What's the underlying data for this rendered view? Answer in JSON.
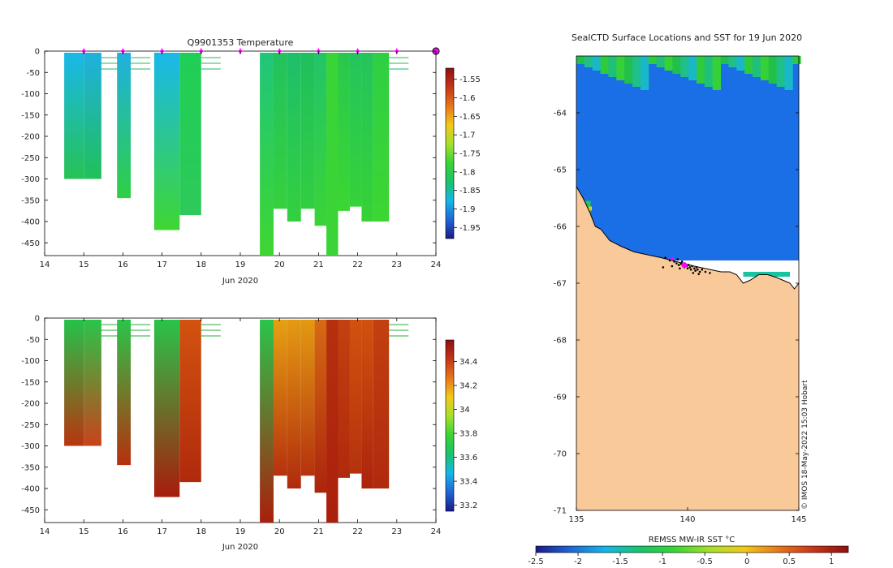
{
  "chart_data": [
    {
      "type": "heatmap",
      "title": "Q9901353  Temperature",
      "xlabel": "Jun 2020",
      "xlim": [
        14,
        24
      ],
      "ylim": [
        -480,
        0
      ],
      "x_ticks": [
        "14",
        "15",
        "16",
        "17",
        "18",
        "19",
        "20",
        "21",
        "22",
        "23",
        "24"
      ],
      "y_ticks": [
        "0",
        "-50",
        "-100",
        "-150",
        "-200",
        "-250",
        "-300",
        "-350",
        "-400",
        "-450"
      ],
      "colorbar": {
        "range": [
          -1.98,
          -1.52
        ],
        "ticks": [
          "-1.55",
          "-1.6",
          "-1.65",
          "-1.7",
          "-1.75",
          "-1.8",
          "-1.85",
          "-1.9",
          "-1.95"
        ],
        "colors": [
          "#1a1a8a",
          "#1f66d6",
          "#16b6e6",
          "#18c46a",
          "#3ad435",
          "#a6e02a",
          "#f2c91a",
          "#e8761b",
          "#c7341a",
          "#8e1010"
        ]
      },
      "surface_markers_x": [
        15,
        16,
        17,
        18,
        19,
        20,
        21,
        22,
        23
      ],
      "current_marker_x": 24,
      "profiles": [
        {
          "x0": 14.5,
          "x1": 15.0,
          "max_depth": 300,
          "top": "#19b8ea",
          "bottom": "#27c253"
        },
        {
          "x0": 15.0,
          "x1": 15.45,
          "max_depth": 300,
          "top": "#1fb0e0",
          "bottom": "#21c05a"
        },
        {
          "x0": 15.85,
          "x1": 16.2,
          "max_depth": 345,
          "top": "#1fb0e0",
          "bottom": "#2fcf44"
        },
        {
          "x0": 16.8,
          "x1": 17.45,
          "max_depth": 420,
          "top": "#19b8ea",
          "bottom": "#3fd632"
        },
        {
          "x0": 17.45,
          "x1": 18.0,
          "max_depth": 385,
          "top": "#1fcf55",
          "bottom": "#2ec95a"
        },
        {
          "x0": 19.5,
          "x1": 19.85,
          "max_depth": 480,
          "top": "#1fc67a",
          "bottom": "#3fd632"
        },
        {
          "x0": 19.85,
          "x1": 20.2,
          "max_depth": 370,
          "top": "#22c25e",
          "bottom": "#35d03e"
        },
        {
          "x0": 20.2,
          "x1": 20.55,
          "max_depth": 400,
          "top": "#1dbf6a",
          "bottom": "#33d03e"
        },
        {
          "x0": 20.55,
          "x1": 20.9,
          "max_depth": 370,
          "top": "#1fbf5e",
          "bottom": "#32ce40"
        },
        {
          "x0": 20.9,
          "x1": 21.2,
          "max_depth": 410,
          "top": "#21c46a",
          "bottom": "#3ad436"
        },
        {
          "x0": 21.2,
          "x1": 21.5,
          "max_depth": 480,
          "top": "#3ad436",
          "bottom": "#3ad436"
        },
        {
          "x0": 21.5,
          "x1": 21.8,
          "max_depth": 375,
          "top": "#28c84e",
          "bottom": "#3cd632"
        },
        {
          "x0": 21.8,
          "x1": 22.1,
          "max_depth": 365,
          "top": "#24c45c",
          "bottom": "#35d23a"
        },
        {
          "x0": 22.1,
          "x1": 22.4,
          "max_depth": 400,
          "top": "#24c45c",
          "bottom": "#36d236"
        },
        {
          "x0": 22.4,
          "x1": 22.8,
          "max_depth": 400,
          "top": "#2fcf44",
          "bottom": "#3cd632"
        }
      ]
    },
    {
      "type": "heatmap",
      "title": "",
      "xlabel": "Jun 2020",
      "xlim": [
        14,
        24
      ],
      "ylim": [
        -480,
        0
      ],
      "x_ticks": [
        "14",
        "15",
        "16",
        "17",
        "18",
        "19",
        "20",
        "21",
        "22",
        "23",
        "24"
      ],
      "y_ticks": [
        "0",
        "-50",
        "-100",
        "-150",
        "-200",
        "-250",
        "-300",
        "-350",
        "-400",
        "-450"
      ],
      "colorbar": {
        "range": [
          33.15,
          34.58
        ],
        "ticks": [
          "34.4",
          "34.2",
          "34",
          "33.8",
          "33.6",
          "33.4",
          "33.2"
        ],
        "colors": [
          "#1a1a8a",
          "#1f66d6",
          "#16b6e6",
          "#18c46a",
          "#3ad435",
          "#a6e02a",
          "#f2c91a",
          "#e8761b",
          "#c7341a",
          "#8e1010"
        ]
      },
      "profiles": [
        {
          "x0": 14.5,
          "x1": 15.0,
          "max_depth": 300,
          "top": "#24c24a",
          "bottom": "#b8350f"
        },
        {
          "x0": 15.0,
          "x1": 15.45,
          "max_depth": 300,
          "top": "#2ac44a",
          "bottom": "#c9421a"
        },
        {
          "x0": 15.85,
          "x1": 16.2,
          "max_depth": 345,
          "top": "#2ac44a",
          "bottom": "#b6300e"
        },
        {
          "x0": 16.8,
          "x1": 17.45,
          "max_depth": 420,
          "top": "#2ac44a",
          "bottom": "#a81c0c"
        },
        {
          "x0": 17.45,
          "x1": 18.0,
          "max_depth": 385,
          "top": "#d2520f",
          "bottom": "#b02a0d"
        },
        {
          "x0": 19.5,
          "x1": 19.85,
          "max_depth": 480,
          "top": "#2ac44a",
          "bottom": "#aa1f0c"
        },
        {
          "x0": 19.85,
          "x1": 20.2,
          "max_depth": 370,
          "top": "#e6a012",
          "bottom": "#b5320e"
        },
        {
          "x0": 20.2,
          "x1": 20.55,
          "max_depth": 400,
          "top": "#e49a12",
          "bottom": "#b02a0d"
        },
        {
          "x0": 20.55,
          "x1": 20.9,
          "max_depth": 370,
          "top": "#e39a12",
          "bottom": "#b5320e"
        },
        {
          "x0": 20.9,
          "x1": 21.2,
          "max_depth": 410,
          "top": "#d66a14",
          "bottom": "#ac240c"
        },
        {
          "x0": 21.2,
          "x1": 21.5,
          "max_depth": 480,
          "top": "#b6300e",
          "bottom": "#aa1f0c"
        },
        {
          "x0": 21.5,
          "x1": 21.8,
          "max_depth": 375,
          "top": "#c24010",
          "bottom": "#b02a0d"
        },
        {
          "x0": 21.8,
          "x1": 22.1,
          "max_depth": 365,
          "top": "#d0520f",
          "bottom": "#b5320e"
        },
        {
          "x0": 22.1,
          "x1": 22.4,
          "max_depth": 400,
          "top": "#d0520f",
          "bottom": "#ac240c"
        },
        {
          "x0": 22.4,
          "x1": 22.8,
          "max_depth": 400,
          "top": "#c24010",
          "bottom": "#b02a0d"
        }
      ]
    },
    {
      "type": "heatmap",
      "title": "SealCTD Surface Locations and SST for 19 Jun 2020",
      "xlim": [
        135,
        145
      ],
      "ylim": [
        -71,
        -63
      ],
      "x_ticks": [
        "135",
        "140",
        "145"
      ],
      "y_ticks": [
        "-64",
        "-65",
        "-66",
        "-67",
        "-68",
        "-69",
        "-70",
        "-71"
      ],
      "colorbar": {
        "label": "REMSS MW-IR SST °C",
        "range": [
          -2.5,
          1.2
        ],
        "ticks": [
          "-2.5",
          "-2",
          "-1.5",
          "-1",
          "-0.5",
          "0",
          "0.5",
          "1"
        ],
        "colors": [
          "#1a1a8a",
          "#1f66d6",
          "#16b6e6",
          "#18c46a",
          "#3ad435",
          "#a6e02a",
          "#f2c91a",
          "#e8761b",
          "#c7341a",
          "#8e1010"
        ]
      },
      "ocean_color": "#1a6fe6",
      "land_color": "#f9c99a",
      "coast_lon": [
        135.0,
        135.3,
        135.6,
        135.85,
        136.1,
        136.3,
        136.5,
        137.0,
        137.6,
        138.2,
        138.8,
        139.3,
        139.8,
        140.3,
        140.9,
        141.5,
        141.9,
        142.2,
        142.5,
        142.8,
        143.2,
        143.6,
        144.0,
        144.3,
        144.6,
        144.8,
        145.0
      ],
      "coast_lat": [
        -65.3,
        -65.5,
        -65.75,
        -66.0,
        -66.05,
        -66.15,
        -66.25,
        -66.35,
        -66.45,
        -66.5,
        -66.55,
        -66.6,
        -66.65,
        -66.7,
        -66.75,
        -66.8,
        -66.8,
        -66.85,
        -67.0,
        -66.95,
        -66.85,
        -66.85,
        -66.9,
        -66.95,
        -67.0,
        -67.1,
        -67.0
      ],
      "seal_points": [
        [
          139.2,
          -66.6
        ],
        [
          139.4,
          -66.62
        ],
        [
          139.5,
          -66.65
        ],
        [
          139.55,
          -66.58
        ],
        [
          139.6,
          -66.68
        ],
        [
          139.7,
          -66.66
        ],
        [
          139.75,
          -66.62
        ],
        [
          139.8,
          -66.7
        ],
        [
          139.85,
          -66.72
        ],
        [
          139.9,
          -66.66
        ],
        [
          139.95,
          -66.7
        ],
        [
          140.0,
          -66.74
        ],
        [
          140.05,
          -66.68
        ],
        [
          140.1,
          -66.72
        ],
        [
          140.15,
          -66.76
        ],
        [
          140.2,
          -66.7
        ],
        [
          140.3,
          -66.74
        ],
        [
          140.35,
          -66.78
        ],
        [
          140.4,
          -66.72
        ],
        [
          140.45,
          -66.76
        ],
        [
          140.55,
          -66.8
        ],
        [
          140.65,
          -66.76
        ],
        [
          140.8,
          -66.8
        ],
        [
          141.0,
          -66.82
        ],
        [
          139.0,
          -66.55
        ],
        [
          139.3,
          -66.7
        ],
        [
          138.9,
          -66.72
        ],
        [
          139.65,
          -66.74
        ],
        [
          140.25,
          -66.82
        ],
        [
          140.5,
          -66.84
        ]
      ],
      "highlight_points": [
        [
          139.85,
          -66.68
        ],
        [
          139.3,
          -66.57
        ]
      ],
      "attribution": "© IMOS 18-May-2022 15:03 Hobart"
    }
  ]
}
